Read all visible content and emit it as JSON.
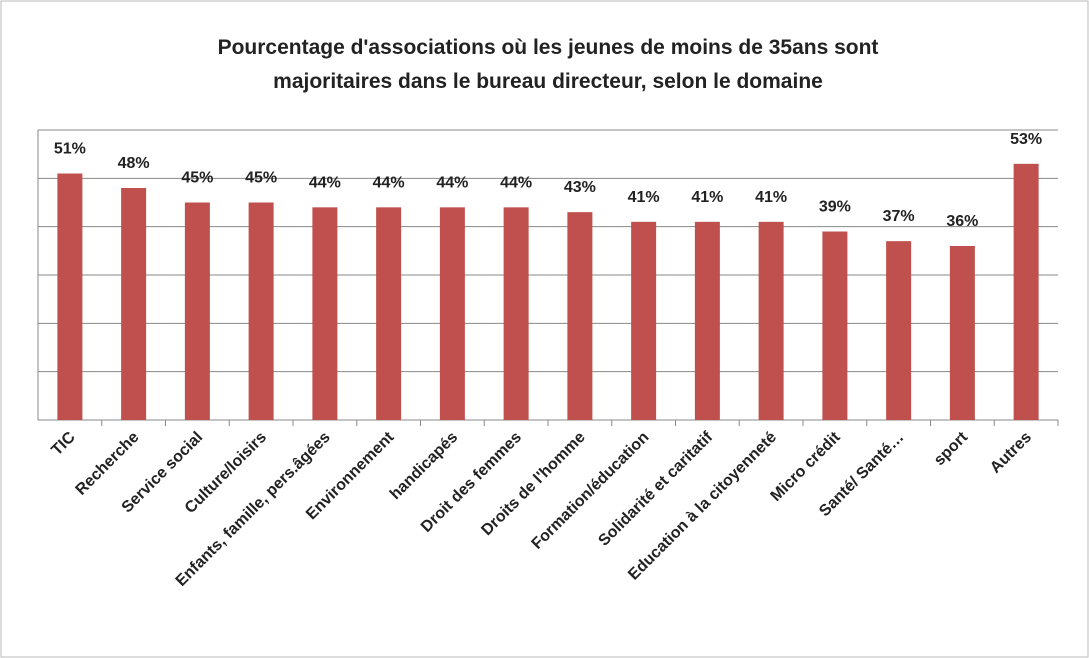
{
  "chart_data": {
    "type": "bar",
    "title": [
      "Pourcentage d'associations où les jeunes de moins de 35ans sont",
      "majoritaires dans le bureau directeur, selon le domaine"
    ],
    "categories": [
      "TIC",
      "Recherche",
      "Service  social",
      "Culture/loisirs",
      "Enfants, famille, pers.âgées",
      "Environnement",
      "handicapés",
      "Droit des femmes",
      "Droits de l'homme",
      "Formation/éducation",
      "Solidarité et caritatif",
      "Education à la citoyenneté",
      "Micro crédit",
      "Santé/ Santé…",
      "sport",
      "Autres"
    ],
    "values": [
      51,
      48,
      45,
      45,
      44,
      44,
      44,
      44,
      43,
      41,
      41,
      41,
      39,
      37,
      36,
      53
    ],
    "value_labels": [
      "51%",
      "48%",
      "45%",
      "45%",
      "44%",
      "44%",
      "44%",
      "44%",
      "43%",
      "41%",
      "41%",
      "41%",
      "39%",
      "37%",
      "36%",
      "53%"
    ],
    "color": "#c0504d",
    "ylim": [
      0,
      60
    ],
    "yticks": [
      0,
      10,
      20,
      30,
      40,
      50,
      60
    ],
    "grid": true
  }
}
